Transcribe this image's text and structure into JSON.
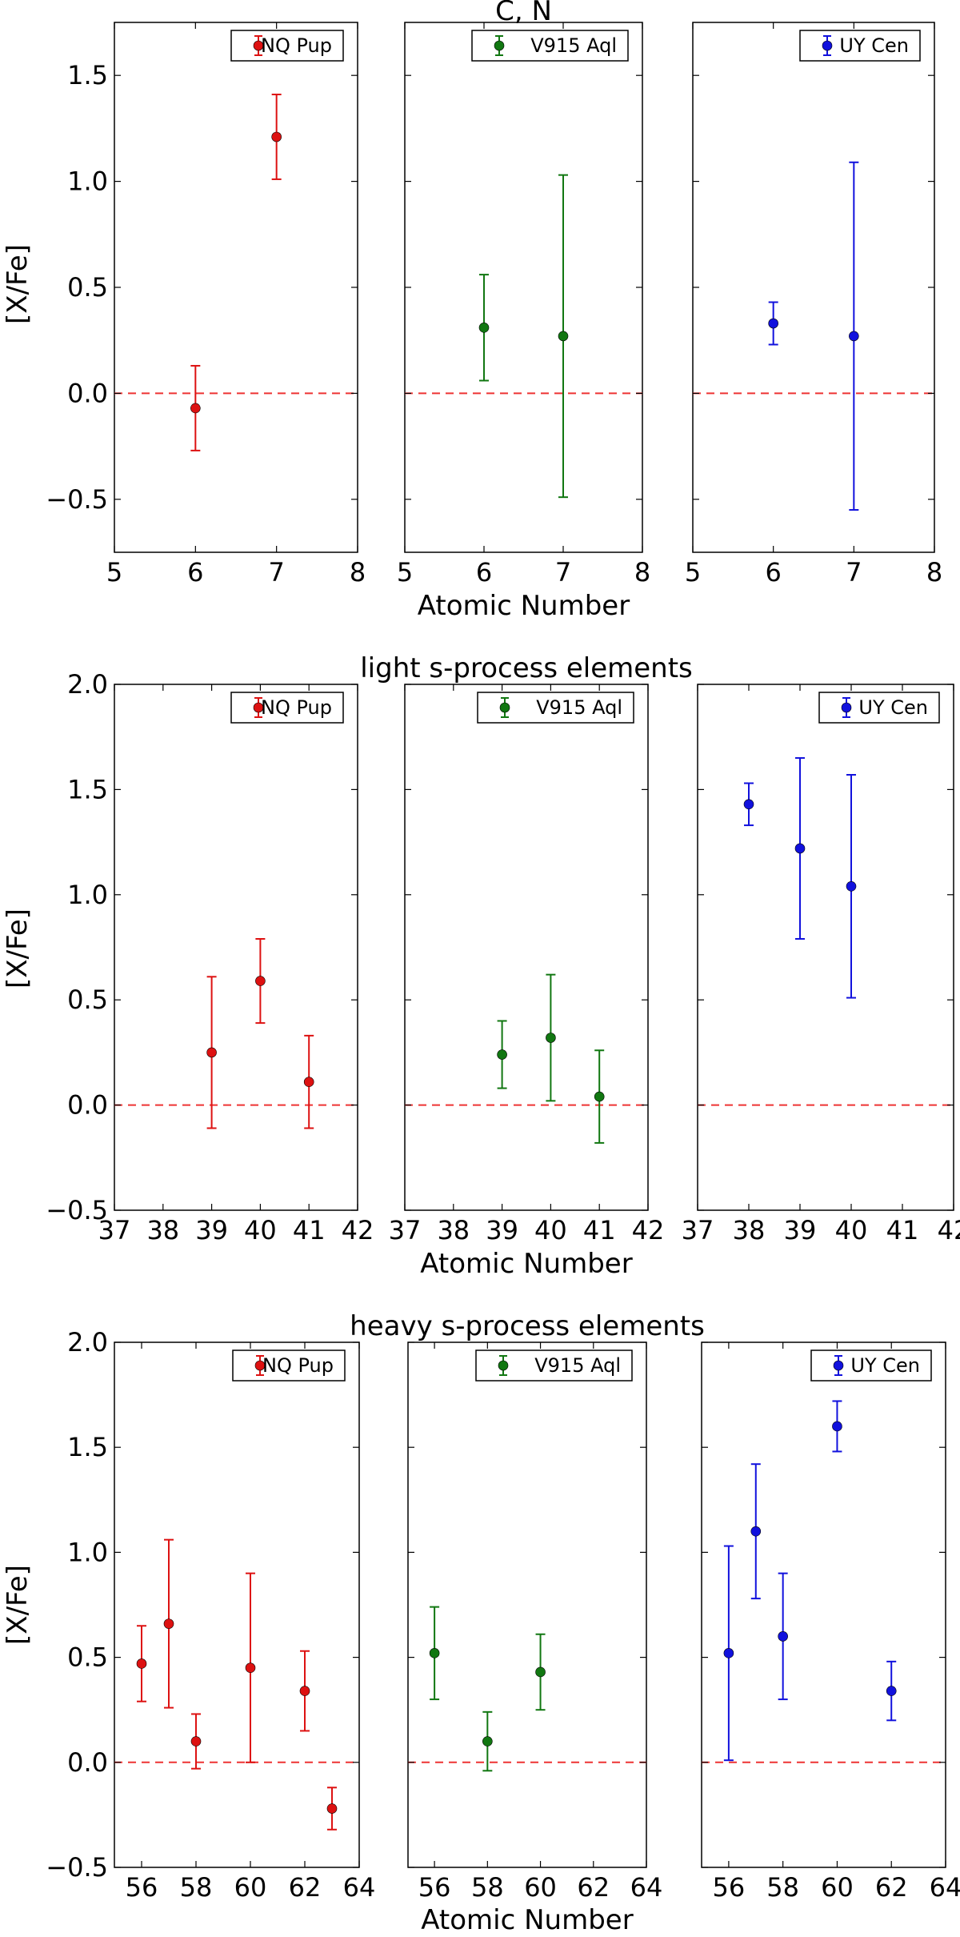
{
  "chart_data": [
    {
      "type": "scatter",
      "title": "C, N",
      "xlabel": "Atomic Number",
      "ylabel": "[X/Fe]",
      "xlim": [
        5,
        8
      ],
      "ylim": [
        -0.75,
        1.75
      ],
      "xticks": [
        5,
        6,
        7,
        8
      ],
      "yticks": [
        -0.5,
        0.0,
        0.5,
        1.0,
        1.5
      ],
      "ytick_labels": [
        "−0.5",
        "0.0",
        "0.5",
        "1.0",
        "1.5"
      ],
      "reference_line": 0.0,
      "panels": [
        {
          "name": "NQ Pup",
          "color": "#dd1111",
          "points": [
            {
              "x": 6,
              "y": -0.07,
              "err": 0.2
            },
            {
              "x": 7,
              "y": 1.21,
              "err": 0.2
            }
          ]
        },
        {
          "name": "V915 Aql",
          "color": "#117711",
          "points": [
            {
              "x": 6,
              "y": 0.31,
              "err": 0.25
            },
            {
              "x": 7,
              "y": 0.27,
              "err": 0.76
            }
          ]
        },
        {
          "name": "UY Cen",
          "color": "#1111dd",
          "points": [
            {
              "x": 6,
              "y": 0.33,
              "err": 0.1
            },
            {
              "x": 7,
              "y": 0.27,
              "err": 0.82
            }
          ]
        }
      ]
    },
    {
      "type": "scatter",
      "title": "light s-process elements",
      "xlabel": "Atomic Number",
      "ylabel": "[X/Fe]",
      "xlim": [
        37,
        42
      ],
      "ylim": [
        -0.5,
        2.0
      ],
      "xticks": [
        37,
        38,
        39,
        40,
        41,
        42
      ],
      "yticks": [
        -0.5,
        0.0,
        0.5,
        1.0,
        1.5,
        2.0
      ],
      "ytick_labels": [
        "−0.5",
        "0.0",
        "0.5",
        "1.0",
        "1.5",
        "2.0"
      ],
      "reference_line": 0.0,
      "panels": [
        {
          "name": "NQ Pup",
          "color": "#dd1111",
          "points": [
            {
              "x": 39,
              "y": 0.25,
              "err": 0.36
            },
            {
              "x": 40,
              "y": 0.59,
              "err": 0.2
            },
            {
              "x": 41,
              "y": 0.11,
              "err": 0.22
            }
          ]
        },
        {
          "name": "V915 Aql",
          "color": "#117711",
          "points": [
            {
              "x": 39,
              "y": 0.24,
              "err": 0.16
            },
            {
              "x": 40,
              "y": 0.32,
              "err": 0.3
            },
            {
              "x": 41,
              "y": 0.04,
              "err": 0.22
            }
          ]
        },
        {
          "name": "UY Cen",
          "color": "#1111dd",
          "points": [
            {
              "x": 38,
              "y": 1.43,
              "err": 0.1
            },
            {
              "x": 39,
              "y": 1.22,
              "err": 0.43
            },
            {
              "x": 40,
              "y": 1.04,
              "err": 0.53
            }
          ]
        }
      ]
    },
    {
      "type": "scatter",
      "title": "heavy s-process elements",
      "xlabel": "Atomic Number",
      "ylabel": "[X/Fe]",
      "xlim": [
        55,
        64
      ],
      "ylim": [
        -0.5,
        2.0
      ],
      "xticks": [
        56,
        58,
        60,
        62,
        64
      ],
      "yticks": [
        -0.5,
        0.0,
        0.5,
        1.0,
        1.5,
        2.0
      ],
      "ytick_labels": [
        "−0.5",
        "0.0",
        "0.5",
        "1.0",
        "1.5",
        "2.0"
      ],
      "reference_line": 0.0,
      "panels": [
        {
          "name": "NQ Pup",
          "color": "#dd1111",
          "points": [
            {
              "x": 56,
              "y": 0.47,
              "err": 0.18
            },
            {
              "x": 57,
              "y": 0.66,
              "err": 0.4
            },
            {
              "x": 58,
              "y": 0.1,
              "err": 0.13
            },
            {
              "x": 60,
              "y": 0.45,
              "err": 0.45
            },
            {
              "x": 62,
              "y": 0.34,
              "err": 0.19
            },
            {
              "x": 63,
              "y": -0.22,
              "err": 0.1
            }
          ]
        },
        {
          "name": "V915 Aql",
          "color": "#117711",
          "points": [
            {
              "x": 56,
              "y": 0.52,
              "err": 0.22
            },
            {
              "x": 58,
              "y": 0.1,
              "err": 0.14
            },
            {
              "x": 60,
              "y": 0.43,
              "err": 0.18
            }
          ]
        },
        {
          "name": "UY Cen",
          "color": "#1111dd",
          "points": [
            {
              "x": 56,
              "y": 0.52,
              "err": 0.51
            },
            {
              "x": 57,
              "y": 1.1,
              "err": 0.32
            },
            {
              "x": 58,
              "y": 0.6,
              "err": 0.3
            },
            {
              "x": 60,
              "y": 1.6,
              "err": 0.12
            },
            {
              "x": 62,
              "y": 0.34,
              "err": 0.14
            }
          ]
        }
      ]
    }
  ]
}
